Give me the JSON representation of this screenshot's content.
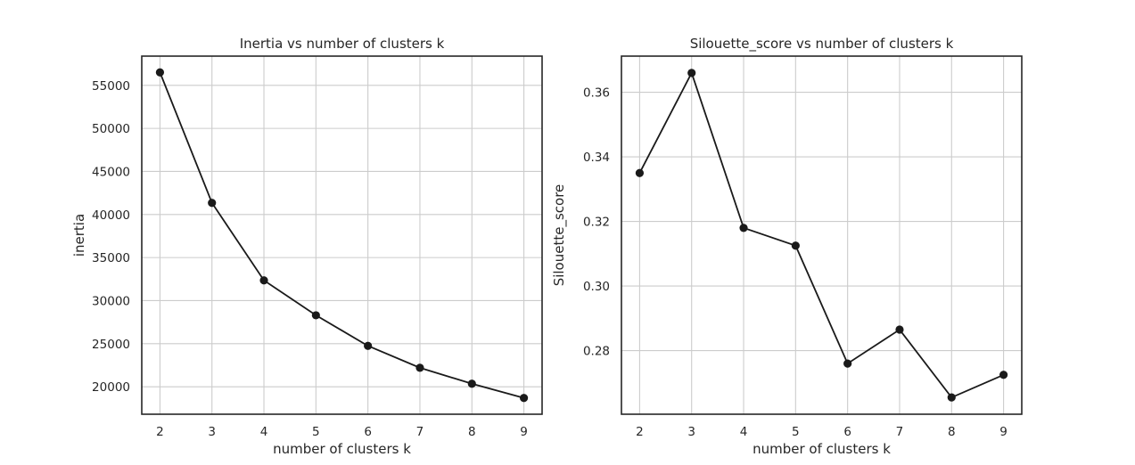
{
  "chart_data": [
    {
      "type": "line",
      "title": "Inertia vs number of clusters k",
      "xlabel": "number of clusters k",
      "ylabel": "inertia",
      "x": [
        2,
        3,
        4,
        5,
        6,
        7,
        8,
        9
      ],
      "values": [
        56500,
        41350,
        32350,
        28300,
        24750,
        22200,
        20350,
        18700
      ],
      "xlim": [
        1.65,
        9.35
      ],
      "ylim": [
        16810,
        58390
      ],
      "xticks": [
        2,
        3,
        4,
        5,
        6,
        7,
        8,
        9
      ],
      "yticks": [
        20000,
        25000,
        30000,
        35000,
        40000,
        45000,
        50000,
        55000
      ],
      "grid": true,
      "line_color": "#1a1a1a",
      "marker_color": "#1a1a1a"
    },
    {
      "type": "line",
      "title": "Silouette_score vs number of clusters k",
      "xlabel": "number of clusters k",
      "ylabel": "Silouette_score",
      "x": [
        2,
        3,
        4,
        5,
        6,
        7,
        8,
        9
      ],
      "values": [
        0.335,
        0.366,
        0.318,
        0.3125,
        0.276,
        0.2865,
        0.2655,
        0.2725
      ],
      "xlim": [
        1.65,
        9.35
      ],
      "ylim": [
        0.2603,
        0.3712
      ],
      "xticks": [
        2,
        3,
        4,
        5,
        6,
        7,
        8,
        9
      ],
      "yticks": [
        0.28,
        0.3,
        0.32,
        0.34,
        0.36
      ],
      "ytick_labels": [
        "0.28",
        "0.30",
        "0.32",
        "0.34",
        "0.36"
      ],
      "grid": true,
      "line_color": "#1a1a1a",
      "marker_color": "#1a1a1a"
    }
  ]
}
